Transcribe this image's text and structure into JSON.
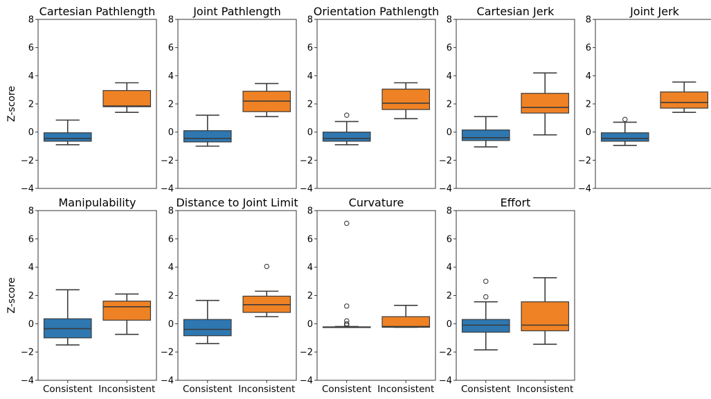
{
  "chart_data": [
    {
      "type": "box",
      "title": "Cartesian Pathlength",
      "ylabel": "Z-score",
      "ylim": [
        -4,
        8
      ],
      "yticks": [
        -4,
        -2,
        0,
        2,
        4,
        6,
        8
      ],
      "categories": [
        "Consistent",
        "Inconsistent"
      ],
      "colors": [
        "#2e77b0",
        "#ef8224"
      ],
      "show_xticklabels": false,
      "boxes": [
        {
          "whislo": -0.9,
          "q1": -0.65,
          "med": -0.45,
          "q3": -0.05,
          "whishi": 0.85,
          "fliers": []
        },
        {
          "whislo": 1.4,
          "q1": 1.8,
          "med": 1.85,
          "q3": 2.95,
          "whishi": 3.5,
          "fliers": []
        }
      ]
    },
    {
      "type": "box",
      "title": "Joint Pathlength",
      "ylabel": "",
      "ylim": [
        -4,
        8
      ],
      "yticks": [
        -4,
        -2,
        0,
        2,
        4,
        6,
        8
      ],
      "categories": [
        "Consistent",
        "Inconsistent"
      ],
      "colors": [
        "#2e77b0",
        "#ef8224"
      ],
      "show_xticklabels": false,
      "boxes": [
        {
          "whislo": -1.0,
          "q1": -0.7,
          "med": -0.45,
          "q3": 0.1,
          "whishi": 1.2,
          "fliers": []
        },
        {
          "whislo": 1.1,
          "q1": 1.45,
          "med": 2.2,
          "q3": 2.9,
          "whishi": 3.45,
          "fliers": []
        }
      ]
    },
    {
      "type": "box",
      "title": "Orientation Pathlength",
      "ylabel": "",
      "ylim": [
        -4,
        8
      ],
      "yticks": [
        -4,
        -2,
        0,
        2,
        4,
        6,
        8
      ],
      "categories": [
        "Consistent",
        "Inconsistent"
      ],
      "colors": [
        "#2e77b0",
        "#ef8224"
      ],
      "show_xticklabels": false,
      "boxes": [
        {
          "whislo": -0.9,
          "q1": -0.65,
          "med": -0.45,
          "q3": 0.0,
          "whishi": 0.75,
          "fliers": [
            1.2
          ]
        },
        {
          "whislo": 0.95,
          "q1": 1.6,
          "med": 2.05,
          "q3": 3.05,
          "whishi": 3.5,
          "fliers": []
        }
      ]
    },
    {
      "type": "box",
      "title": "Cartesian Jerk",
      "ylabel": "",
      "ylim": [
        -4,
        8
      ],
      "yticks": [
        -4,
        -2,
        0,
        2,
        4,
        6,
        8
      ],
      "categories": [
        "Consistent",
        "Inconsistent"
      ],
      "colors": [
        "#2e77b0",
        "#ef8224"
      ],
      "show_xticklabels": false,
      "boxes": [
        {
          "whislo": -1.05,
          "q1": -0.6,
          "med": -0.4,
          "q3": 0.15,
          "whishi": 1.1,
          "fliers": []
        },
        {
          "whislo": -0.2,
          "q1": 1.35,
          "med": 1.75,
          "q3": 2.75,
          "whishi": 4.2,
          "fliers": []
        }
      ]
    },
    {
      "type": "box",
      "title": "Joint Jerk",
      "ylabel": "",
      "ylim": [
        -4,
        8
      ],
      "yticks": [
        -4,
        -2,
        0,
        2,
        4,
        6,
        8
      ],
      "categories": [
        "Consistent",
        "Inconsistent"
      ],
      "colors": [
        "#2e77b0",
        "#ef8224"
      ],
      "show_xticklabels": false,
      "boxes": [
        {
          "whislo": -0.95,
          "q1": -0.65,
          "med": -0.45,
          "q3": -0.05,
          "whishi": 0.7,
          "fliers": [
            0.9
          ]
        },
        {
          "whislo": 1.4,
          "q1": 1.7,
          "med": 2.1,
          "q3": 2.85,
          "whishi": 3.55,
          "fliers": []
        }
      ]
    },
    {
      "type": "box",
      "title": "Manipulability",
      "ylabel": "Z-score",
      "ylim": [
        -4,
        8
      ],
      "yticks": [
        -4,
        -2,
        0,
        2,
        4,
        6,
        8
      ],
      "categories": [
        "Consistent",
        "Inconsistent"
      ],
      "colors": [
        "#2e77b0",
        "#ef8224"
      ],
      "show_xticklabels": true,
      "boxes": [
        {
          "whislo": -1.5,
          "q1": -1.0,
          "med": -0.35,
          "q3": 0.35,
          "whishi": 2.4,
          "fliers": []
        },
        {
          "whislo": -0.75,
          "q1": 0.25,
          "med": 1.2,
          "q3": 1.6,
          "whishi": 2.1,
          "fliers": []
        }
      ]
    },
    {
      "type": "box",
      "title": "Distance to Joint Limit",
      "ylabel": "",
      "ylim": [
        -4,
        8
      ],
      "yticks": [
        -4,
        -2,
        0,
        2,
        4,
        6,
        8
      ],
      "categories": [
        "Consistent",
        "Inconsistent"
      ],
      "colors": [
        "#2e77b0",
        "#ef8224"
      ],
      "show_xticklabels": true,
      "boxes": [
        {
          "whislo": -1.4,
          "q1": -0.85,
          "med": -0.4,
          "q3": 0.3,
          "whishi": 1.65,
          "fliers": []
        },
        {
          "whislo": 0.5,
          "q1": 0.8,
          "med": 1.35,
          "q3": 1.95,
          "whishi": 2.3,
          "fliers": [
            4.05
          ]
        }
      ]
    },
    {
      "type": "box",
      "title": "Curvature",
      "ylabel": "",
      "ylim": [
        -4,
        8
      ],
      "yticks": [
        -4,
        -2,
        0,
        2,
        4,
        6,
        8
      ],
      "categories": [
        "Consistent",
        "Inconsistent"
      ],
      "colors": [
        "#2e77b0",
        "#ef8224"
      ],
      "show_xticklabels": true,
      "boxes": [
        {
          "whislo": -0.25,
          "q1": -0.25,
          "med": -0.25,
          "q3": -0.22,
          "whishi": -0.2,
          "fliers": [
            7.1,
            1.25,
            0.2,
            0.0,
            -0.1
          ]
        },
        {
          "whislo": -0.25,
          "q1": -0.25,
          "med": -0.2,
          "q3": 0.5,
          "whishi": 1.3,
          "fliers": []
        }
      ]
    },
    {
      "type": "box",
      "title": "Effort",
      "ylabel": "",
      "ylim": [
        -4,
        8
      ],
      "yticks": [
        -4,
        -2,
        0,
        2,
        4,
        6,
        8
      ],
      "categories": [
        "Consistent",
        "Inconsistent"
      ],
      "colors": [
        "#2e77b0",
        "#ef8224"
      ],
      "show_xticklabels": true,
      "boxes": [
        {
          "whislo": -1.85,
          "q1": -0.6,
          "med": -0.1,
          "q3": 0.3,
          "whishi": 1.55,
          "fliers": [
            3.0,
            1.9
          ]
        },
        {
          "whislo": -1.45,
          "q1": -0.5,
          "med": -0.1,
          "q3": 1.55,
          "whishi": 3.25,
          "fliers": []
        }
      ]
    }
  ]
}
